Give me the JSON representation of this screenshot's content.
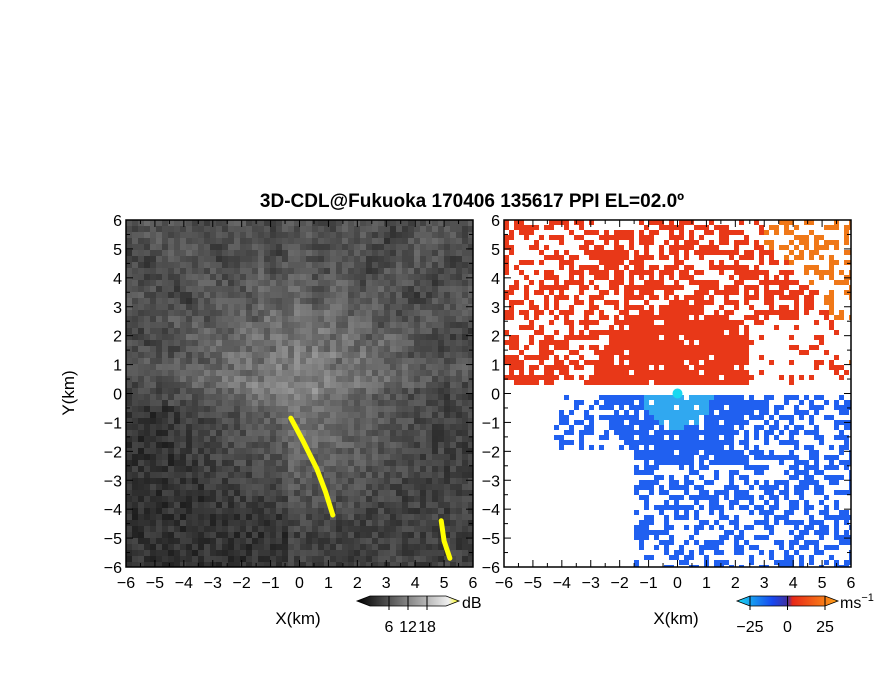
{
  "figure": {
    "title": "3D-CDL@Fukuoka 170406 135617 PPI EL=02.0º"
  },
  "chart_data": [
    {
      "type": "heatmap",
      "panel": "left",
      "variable": "backscatter intensity",
      "xlabel": "X(km)",
      "ylabel": "Y(km)",
      "xlim": [
        -6,
        6
      ],
      "ylim": [
        -6,
        6
      ],
      "x_ticks": [
        "−6",
        "−5",
        "−4",
        "−3",
        "−2",
        "−1",
        "0",
        "1",
        "2",
        "3",
        "4",
        "5",
        "6"
      ],
      "y_ticks": [
        "−6",
        "−5",
        "−4",
        "−3",
        "−2",
        "−1",
        "0",
        "1",
        "2",
        "3",
        "4",
        "5",
        "6"
      ],
      "colorbar": {
        "unit": "dB",
        "ticks": [
          "6",
          "12",
          "18"
        ],
        "tick_values": [
          6,
          12,
          18
        ],
        "range": [
          0,
          24
        ],
        "colors": [
          "#000000",
          "#ffffff",
          "#ffff00"
        ]
      },
      "features": [
        {
          "label": "high-intensity band (yellow)",
          "points": [
            [
              -0.3,
              -0.85
            ],
            [
              0.1,
              -1.6
            ],
            [
              0.6,
              -2.6
            ],
            [
              0.9,
              -3.4
            ],
            [
              1.15,
              -4.2
            ]
          ]
        },
        {
          "label": "high-intensity patch (yellow)",
          "points": [
            [
              4.9,
              -4.4
            ],
            [
              5.0,
              -5.1
            ],
            [
              5.2,
              -5.7
            ]
          ]
        }
      ]
    },
    {
      "type": "heatmap",
      "panel": "right",
      "variable": "radial velocity",
      "xlabel": "X(km)",
      "xlim": [
        -6,
        6
      ],
      "ylim": [
        -6,
        6
      ],
      "x_ticks": [
        "−6",
        "−5",
        "−4",
        "−3",
        "−2",
        "−1",
        "0",
        "1",
        "2",
        "3",
        "4",
        "5",
        "6"
      ],
      "y_ticks": [
        "−6",
        "−5",
        "−4",
        "−3",
        "−2",
        "−1",
        "0",
        "1",
        "2",
        "3",
        "4",
        "5",
        "6"
      ],
      "colorbar": {
        "unit": "ms",
        "unit_superscript": "−1",
        "ticks": [
          "−25",
          "0",
          "25"
        ],
        "tick_values": [
          -25,
          0,
          25
        ],
        "range": [
          -25,
          25
        ],
        "colors": [
          "#18d8f0",
          "#1848f0",
          "#e82818",
          "#ffa018"
        ]
      },
      "regions": [
        {
          "sign": "positive (away)",
          "color": "#e83818",
          "sector": "north, y > 0.3"
        },
        {
          "sign": "negative (toward)",
          "color": "#2060f0",
          "sector": "south, y < 0"
        }
      ]
    }
  ]
}
